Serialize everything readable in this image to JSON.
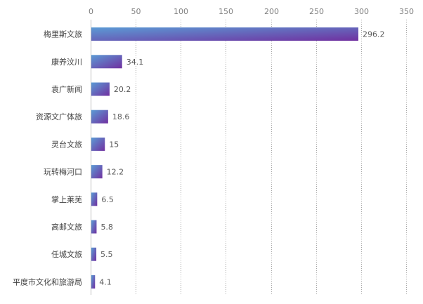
{
  "chart_data": {
    "type": "bar",
    "orientation": "horizontal",
    "categories": [
      "梅里斯文旅",
      "康养汶川",
      "袁广新闻",
      "资源文广体旅",
      "灵台文旅",
      "玩转梅河口",
      "掌上莱芜",
      "高邮文旅",
      "任城文旅",
      "平度市文化和旅游局"
    ],
    "values": [
      296.2,
      34.1,
      20.2,
      18.6,
      15,
      12.2,
      6.5,
      5.8,
      5.5,
      4.1
    ],
    "value_labels": [
      "296.2",
      "34.1",
      "20.2",
      "18.6",
      "15",
      "12.2",
      "6.5",
      "5.8",
      "5.5",
      "4.1"
    ],
    "xlim": [
      0,
      350
    ],
    "x_ticks": [
      0,
      50,
      100,
      150,
      200,
      250,
      300,
      350
    ],
    "x_axis_position": "top",
    "grid": "vertical-dotted",
    "bar_gradient": [
      "#5b9bd5",
      "#7030a0"
    ]
  }
}
